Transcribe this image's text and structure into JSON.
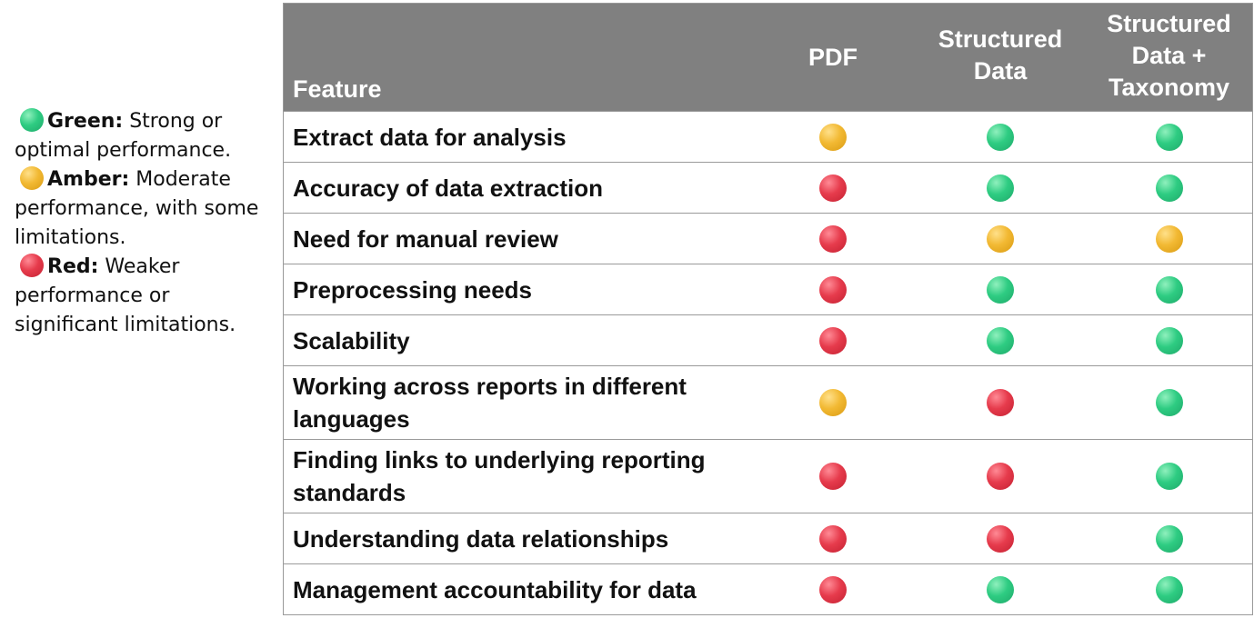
{
  "colors": {
    "green": "#2ecc82",
    "amber": "#f2b933",
    "red": "#e63b4c",
    "header_bg": "#808080"
  },
  "legend": [
    {
      "status": "green",
      "label": "Green:",
      "text": " Strong or optimal performance."
    },
    {
      "status": "amber",
      "label": "Amber:",
      "text": "  Moderate performance, with some limitations."
    },
    {
      "status": "red",
      "label": "Red:",
      "text": "  Weaker performance or significant limitations."
    }
  ],
  "table": {
    "headers": [
      "Feature",
      "PDF",
      "Structured Data",
      "Structured Data + Taxonomy"
    ],
    "rows": [
      {
        "feature": "Extract data for analysis",
        "ratings": [
          "amber",
          "green",
          "green"
        ]
      },
      {
        "feature": "Accuracy of data extraction",
        "ratings": [
          "red",
          "green",
          "green"
        ]
      },
      {
        "feature": "Need for manual review",
        "ratings": [
          "red",
          "amber",
          "amber"
        ]
      },
      {
        "feature": "Preprocessing needs",
        "ratings": [
          "red",
          "green",
          "green"
        ]
      },
      {
        "feature": "Scalability",
        "ratings": [
          "red",
          "green",
          "green"
        ]
      },
      {
        "feature": "Working across reports in different languages",
        "ratings": [
          "amber",
          "red",
          "green"
        ]
      },
      {
        "feature": "Finding links to underlying reporting standards",
        "ratings": [
          "red",
          "red",
          "green"
        ]
      },
      {
        "feature": "Understanding data relationships",
        "ratings": [
          "red",
          "red",
          "green"
        ]
      },
      {
        "feature": "Management accountability for data",
        "ratings": [
          "red",
          "green",
          "green"
        ]
      }
    ]
  }
}
